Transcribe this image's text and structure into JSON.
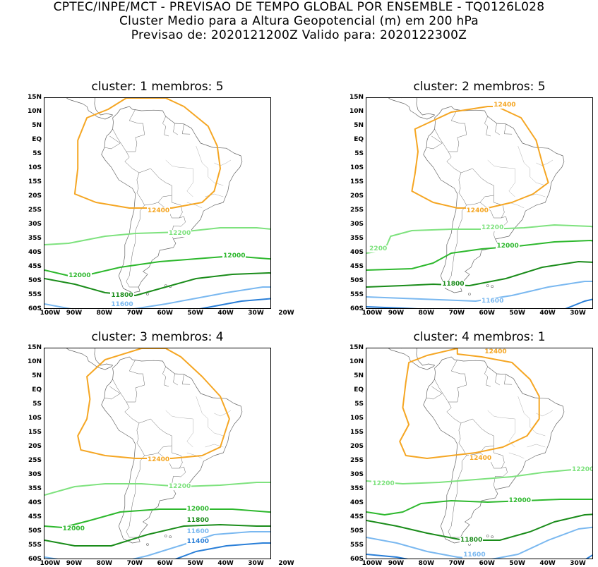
{
  "header": {
    "line1": "CPTEC/INPE/MCT - PREVISAO DE TEMPO GLOBAL POR ENSEMBLE - TQ0126L028",
    "line2": "Cluster Medio para a Altura Geopotencial (m) em 200 hPa",
    "line3": "Previsao de: 2020121200Z    Valido para: 2020122300Z"
  },
  "axes": {
    "lat_labels": [
      "15N",
      "10N",
      "5N",
      "EQ",
      "5S",
      "10S",
      "15S",
      "20S",
      "25S",
      "30S",
      "35S",
      "40S",
      "45S",
      "50S",
      "55S",
      "60S"
    ],
    "lon_labels": [
      "100W",
      "90W",
      "80W",
      "70W",
      "60W",
      "50W",
      "40W",
      "30W",
      "20W"
    ]
  },
  "colors": {
    "c12400": "#f5a623",
    "c12200": "#7ee27e",
    "c12000": "#2db82d",
    "c11800": "#1a8c1a",
    "c11600": "#7ab8f0",
    "c11400": "#2a7fd8",
    "land": "#666666"
  },
  "panels": [
    {
      "title": "cluster: 1   membros: 5",
      "labels": [
        {
          "text": "12400",
          "color": "c12400"
        },
        {
          "text": "12200",
          "color": "c12200"
        },
        {
          "text": "12000",
          "color": "c12000"
        },
        {
          "text": "12000",
          "color": "c12000"
        },
        {
          "text": "11800",
          "color": "c11800"
        },
        {
          "text": "11600",
          "color": "c11600"
        }
      ]
    },
    {
      "title": "cluster: 2   membros: 5",
      "labels": [
        {
          "text": "12400",
          "color": "c12400"
        },
        {
          "text": "12400",
          "color": "c12400"
        },
        {
          "text": "12200",
          "color": "c12200"
        },
        {
          "text": "2200",
          "color": "c12200"
        },
        {
          "text": "12000",
          "color": "c12000"
        },
        {
          "text": "11800",
          "color": "c11800"
        },
        {
          "text": "11600",
          "color": "c11600"
        }
      ]
    },
    {
      "title": "cluster: 3   membros: 4",
      "labels": [
        {
          "text": "12400",
          "color": "c12400"
        },
        {
          "text": "12200",
          "color": "c12200"
        },
        {
          "text": "12000",
          "color": "c12000"
        },
        {
          "text": "12000",
          "color": "c12000"
        },
        {
          "text": "11800",
          "color": "c11800"
        },
        {
          "text": "11600",
          "color": "c11600"
        },
        {
          "text": "11400",
          "color": "c11400"
        }
      ]
    },
    {
      "title": "cluster: 4   membros: 1",
      "labels": [
        {
          "text": "12400",
          "color": "c12400"
        },
        {
          "text": "12400",
          "color": "c12400"
        },
        {
          "text": "12200",
          "color": "c12200"
        },
        {
          "text": "12200",
          "color": "c12200"
        },
        {
          "text": "12000",
          "color": "c12000"
        },
        {
          "text": "11800",
          "color": "c11800"
        },
        {
          "text": "11600",
          "color": "c11600"
        }
      ]
    }
  ]
}
